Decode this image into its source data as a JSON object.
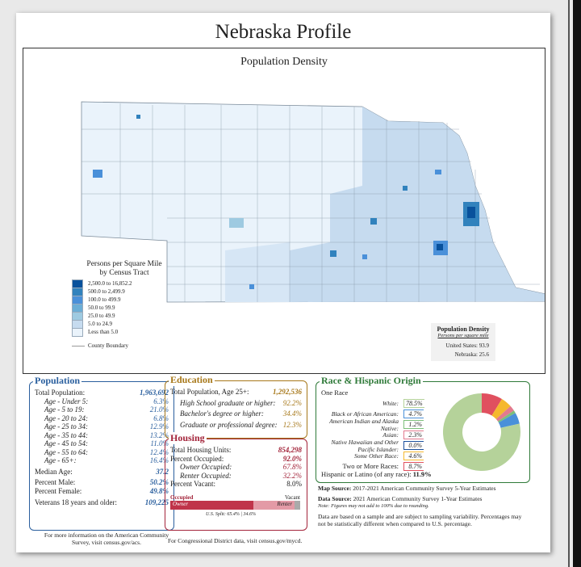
{
  "title": "Nebraska Profile",
  "map": {
    "title": "Population Density",
    "legend_title": "Persons per Square Mile\nby Census Tract",
    "legend_items": [
      {
        "label": "2,500.0 to 16,852.2",
        "color": "#08519c"
      },
      {
        "label": "500.0 to 2,499.9",
        "color": "#3182bd"
      },
      {
        "label": "100.0 to 499.9",
        "color": "#4a90d9"
      },
      {
        "label": "50.0 to 99.9",
        "color": "#6baed6"
      },
      {
        "label": "25.0 to 49.9",
        "color": "#9ecae1"
      },
      {
        "label": "5.0 to 24.9",
        "color": "#c6dbef"
      },
      {
        "label": "Less than 5.0",
        "color": "#eaf3fb"
      }
    ],
    "county_boundary": "County Boundary",
    "density_box": {
      "title": "Population Density",
      "subtitle": "Persons per square mile",
      "us": "United States: 93.9",
      "ne": "Nebraska: 25.6"
    }
  },
  "population": {
    "title": "Population",
    "rows": [
      {
        "label": "Total Population:",
        "value": "1,963,692",
        "indent": false
      },
      {
        "label": "Age - Under 5:",
        "value": "6.3%",
        "indent": true
      },
      {
        "label": "Age - 5 to 19:",
        "value": "21.0%",
        "indent": true
      },
      {
        "label": "Age - 20 to 24:",
        "value": "6.8%",
        "indent": true
      },
      {
        "label": "Age - 25 to 34:",
        "value": "12.9%",
        "indent": true
      },
      {
        "label": "Age - 35 to 44:",
        "value": "13.2%",
        "indent": true
      },
      {
        "label": "Age - 45 to 54:",
        "value": "11.0%",
        "indent": true
      },
      {
        "label": "Age - 55 to 64:",
        "value": "12.4%",
        "indent": true
      },
      {
        "label": "Age - 65+:",
        "value": "16.4%",
        "indent": true
      }
    ],
    "median_age_label": "Median Age:",
    "median_age": "37.2",
    "male_label": "Percent Male:",
    "male": "50.2%",
    "female_label": "Percent Female:",
    "female": "49.8%",
    "veterans_label": "Veterans 18 years and older:",
    "veterans": "109,225",
    "footnote": "For more information on the American Community Survey, visit census.gov/acs."
  },
  "education": {
    "title": "Education",
    "total_label": "Total Population, Age 25+:",
    "total": "1,292,536",
    "rows": [
      {
        "label": "High School graduate or higher:",
        "value": "92.2%"
      },
      {
        "label": "Bachelor's degree or higher:",
        "value": "34.4%"
      },
      {
        "label": "Graduate or professional degree:",
        "value": "12.3%"
      }
    ]
  },
  "housing": {
    "title": "Housing",
    "total_label": "Total Housing Units:",
    "total": "854,298",
    "occupied_label": "Percent Occupied:",
    "occupied": "92.0%",
    "owner_label": "Owner Occupied:",
    "owner": "67.8%",
    "renter_label": "Renter Occupied:",
    "renter": "32.2%",
    "vacant_label": "Percent Vacant:",
    "vacant": "8.0%",
    "bar": {
      "occupied": "Occupied",
      "vacant": "Vacant",
      "owner": "Owner",
      "renter": "Renter",
      "owner_frac": 0.624,
      "renter_frac": 0.296,
      "us_split": "U.S. Split: 65.4% | 34.6%"
    },
    "footnote": "For Congressional District data, visit census.gov/mycd."
  },
  "race": {
    "title": "Race & Hispanic Origin",
    "one_race": "One Race",
    "rows": [
      {
        "label": "White:",
        "value": "78.5%",
        "color": "#b5d29a"
      },
      {
        "label": "Black or African American:",
        "value": "4.7%",
        "color": "#4a90d9"
      },
      {
        "label": "American Indian and Alaska Native:",
        "value": "1.2%",
        "color": "#7cbf7a"
      },
      {
        "label": "Asian:",
        "value": "2.3%",
        "color": "#e27a8e"
      },
      {
        "label": "Native Hawaiian and Other Pacific Islander:",
        "value": "0.0%",
        "color": "#1b4f9c"
      },
      {
        "label": "Some Other Race:",
        "value": "4.6%",
        "color": "#f5b82e"
      },
      {
        "label": "Two or More Races:",
        "value": "8.7%",
        "color": "#e0505f"
      }
    ],
    "hispanic_label": "Hispanic or Latino (of any race):",
    "hispanic": "11.9%",
    "pie": [
      78.5,
      4.7,
      1.2,
      2.3,
      0.0,
      4.6,
      8.7
    ]
  },
  "sources": {
    "map_source_label": "Map Source:",
    "map_source": "2017-2021 American Community Survey 5-Year Estimates",
    "data_source_label": "Data Source:",
    "data_source": "2021 American Community Survey 1-Year Estimates",
    "data_note": "Note: Figures may not add to 100% due to rounding.",
    "disclaimer": "Data are based on a sample and are subject to sampling variability. Percentages may not be statistically different when compared to U.S. percentage."
  }
}
